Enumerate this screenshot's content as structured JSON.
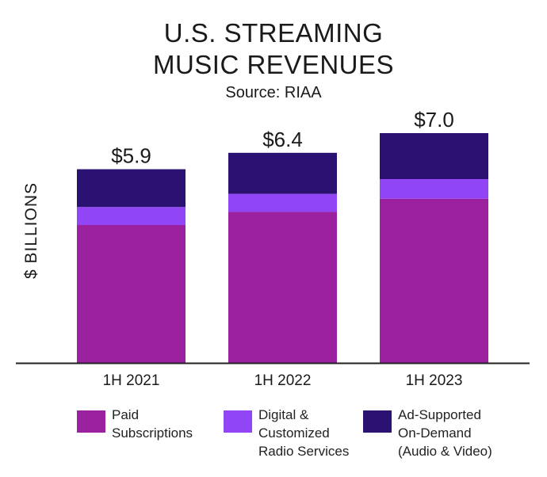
{
  "title_line1": "U.S. STREAMING",
  "title_line2": "MUSIC REVENUES",
  "source": "Source: RIAA",
  "colors": {
    "paid": "#9b219f",
    "digital": "#9245f5",
    "ad": "#2a1172",
    "axis": "#222222",
    "text": "#1a1a1a"
  },
  "chart_data": {
    "type": "bar",
    "stacked": true,
    "title": "U.S. STREAMING MUSIC REVENUES",
    "subtitle": "Source: RIAA",
    "ylabel": "$ BILLIONS",
    "xlabel": "",
    "categories": [
      "1H 2021",
      "1H 2022",
      "1H 2023"
    ],
    "totals": [
      5.9,
      6.4,
      7.0
    ],
    "total_labels": [
      "$5.9",
      "$6.4",
      "$7.0"
    ],
    "ylim": [
      0,
      7.0
    ],
    "grid": false,
    "legend_position": "bottom",
    "series": [
      {
        "name": "Paid Subscriptions",
        "values": [
          4.2,
          4.6,
          5.0
        ],
        "color": "#9b219f"
      },
      {
        "name": "Digital & Customized Radio Services",
        "values": [
          0.55,
          0.55,
          0.6
        ],
        "color": "#9245f5"
      },
      {
        "name": "Ad-Supported On-Demand (Audio & Video)",
        "values": [
          1.15,
          1.25,
          1.4
        ],
        "color": "#2a1172"
      }
    ]
  },
  "legend": [
    {
      "label": "Paid\nSubscriptions",
      "color": "#9b219f"
    },
    {
      "label": "Digital &\nCustomized\nRadio Services",
      "color": "#9245f5"
    },
    {
      "label": "Ad-Supported\nOn-Demand\n(Audio & Video)",
      "color": "#2a1172"
    }
  ]
}
